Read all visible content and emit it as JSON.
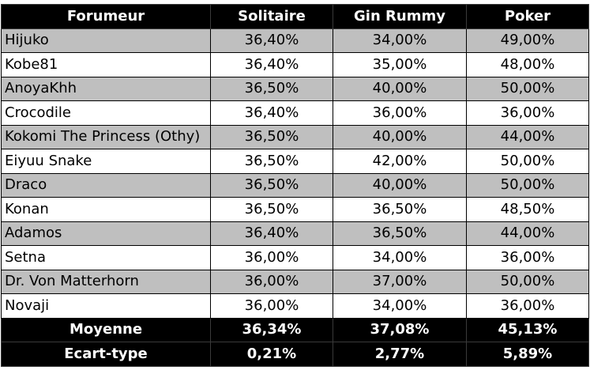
{
  "table": {
    "headers": [
      "Forumeur",
      "Solitaire",
      "Gin Rummy",
      "Poker"
    ],
    "rows": [
      [
        "Hijuko",
        "36,40%",
        "34,00%",
        "49,00%"
      ],
      [
        "Kobe81",
        "36,40%",
        "35,00%",
        "48,00%"
      ],
      [
        "AnoyaKhh",
        "36,50%",
        "40,00%",
        "50,00%"
      ],
      [
        "Crocodile",
        "36,40%",
        "36,00%",
        "36,00%"
      ],
      [
        "Kokomi The Princess (Othy)",
        "36,50%",
        "40,00%",
        "44,00%"
      ],
      [
        "Eiyuu Snake",
        "36,50%",
        "42,00%",
        "50,00%"
      ],
      [
        "Draco",
        "36,50%",
        "40,00%",
        "50,00%"
      ],
      [
        "Konan",
        "36,50%",
        "36,50%",
        "48,50%"
      ],
      [
        "Adamos",
        "36,40%",
        "36,50%",
        "44,00%"
      ],
      [
        "Setna",
        "36,00%",
        "34,00%",
        "36,00%"
      ],
      [
        "Dr. Von Matterhorn",
        "36,00%",
        "37,00%",
        "50,00%"
      ],
      [
        "Novaji",
        "36,00%",
        "34,00%",
        "36,00%"
      ]
    ],
    "summary": [
      [
        "Moyenne",
        "36,34%",
        "37,08%",
        "45,13%"
      ],
      [
        "Ecart-type",
        "0,21%",
        "2,77%",
        "5,89%"
      ]
    ]
  },
  "colors": {
    "header_bg": "#000000",
    "header_text": "#ffffff",
    "stripe_bg": "#bfbfbf",
    "row_bg": "#ffffff",
    "grid": "#000000"
  }
}
